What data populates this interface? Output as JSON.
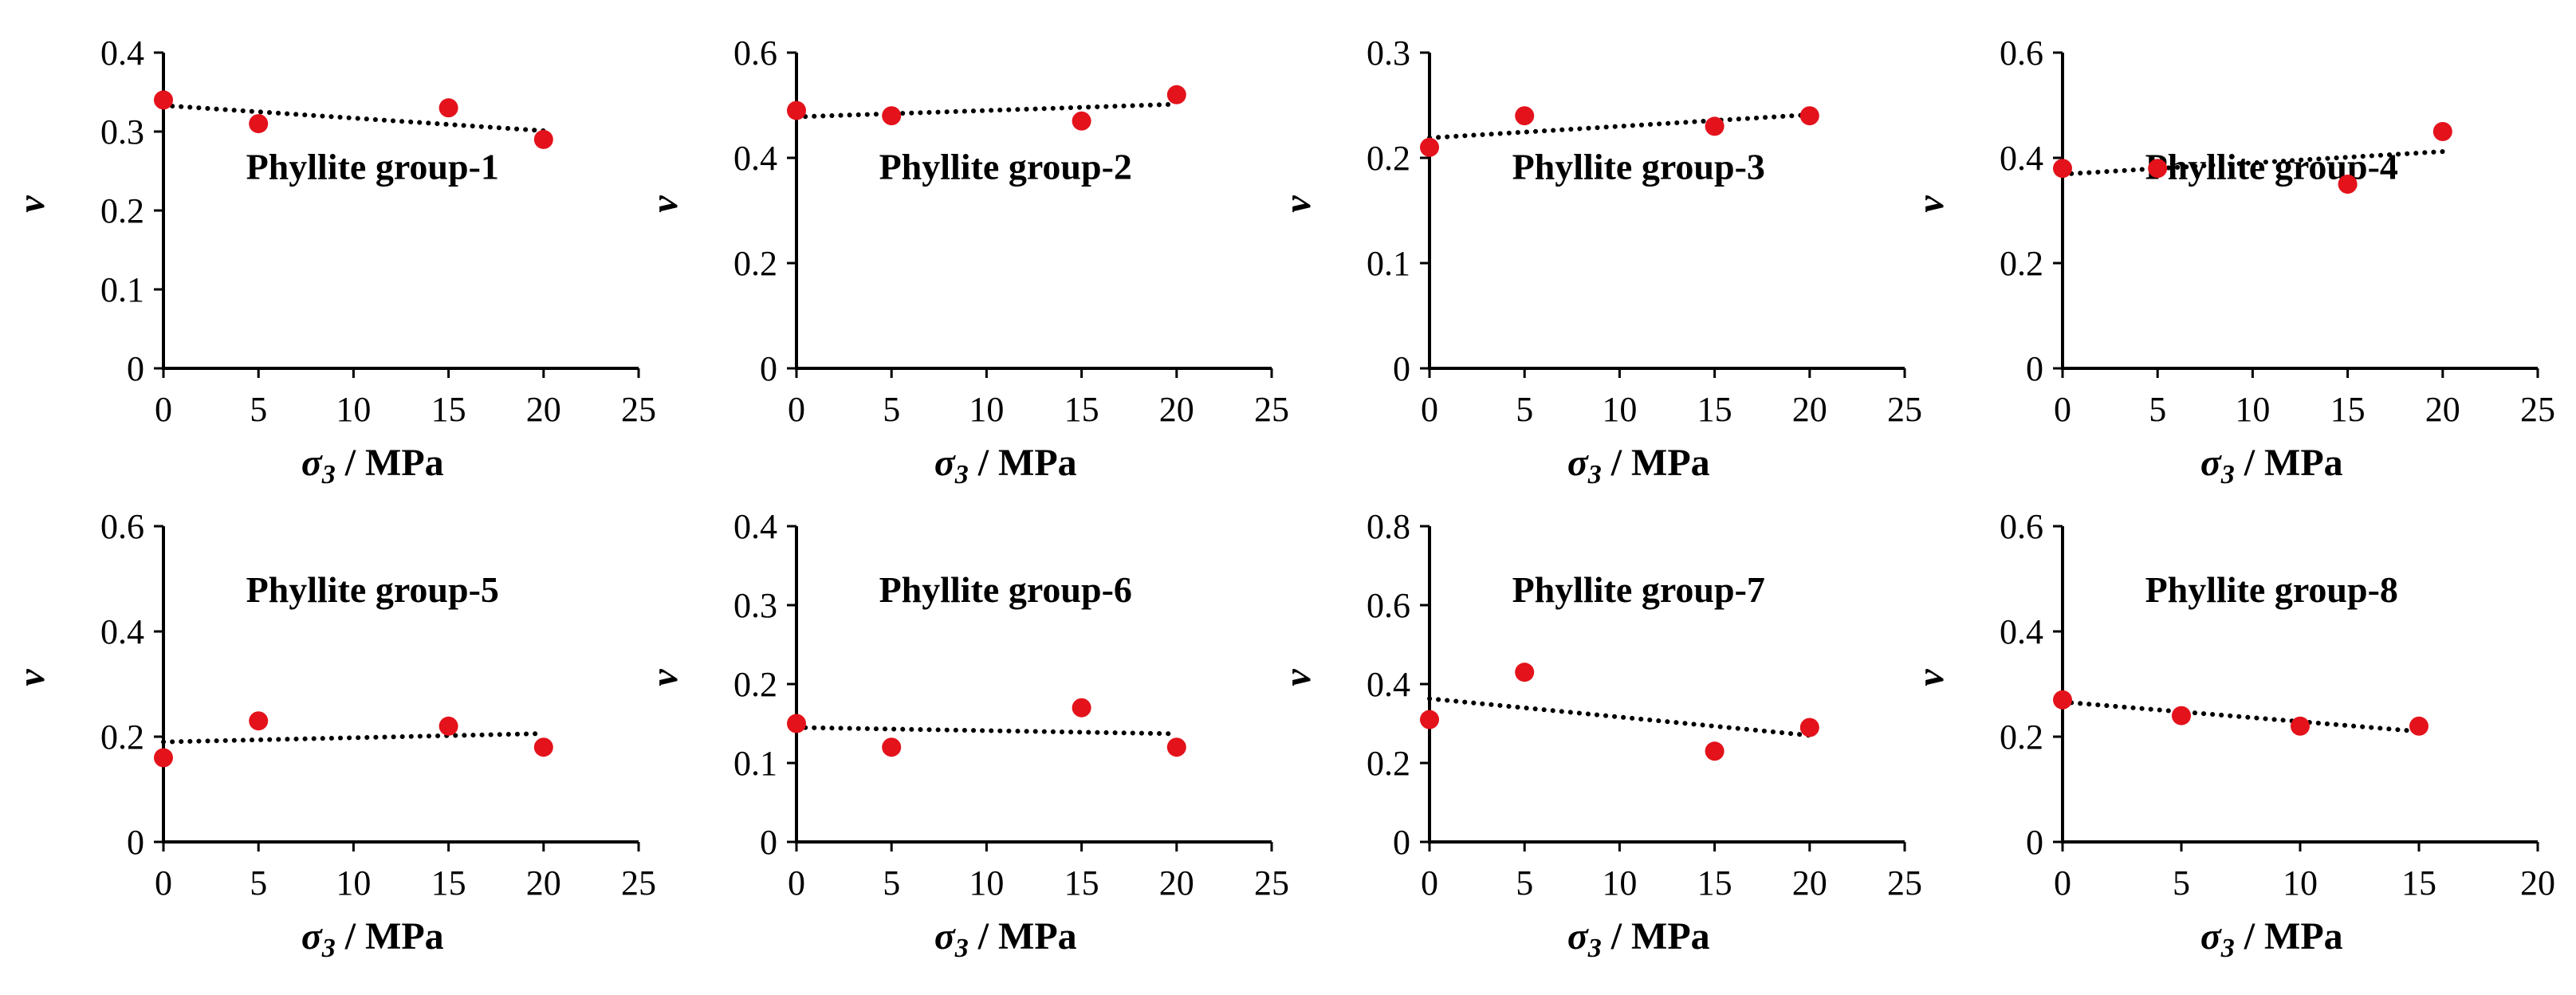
{
  "colors": {
    "point": "#e3121b",
    "axis": "#000000",
    "trend": "#000000"
  },
  "chart_data": [
    {
      "type": "scatter",
      "title": "Phyllite group-1",
      "xlabel": "σ3 / MPa",
      "ylabel": "ν",
      "xlim": [
        0,
        25
      ],
      "ylim": [
        0,
        0.4
      ],
      "xticks": [
        "0",
        "5",
        "10",
        "15",
        "20",
        "25"
      ],
      "yticks": [
        "0",
        "0.1",
        "0.2",
        "0.3",
        "0.4"
      ],
      "x": [
        0,
        5,
        15,
        20
      ],
      "y": [
        0.34,
        0.31,
        0.33,
        0.29
      ],
      "trendline": {
        "style": "dotted",
        "x": [
          0,
          20
        ],
        "y": [
          0.333,
          0.301
        ]
      }
    },
    {
      "type": "scatter",
      "title": "Phyllite group-2",
      "xlabel": "σ3 / MPa",
      "ylabel": "ν",
      "xlim": [
        0,
        25
      ],
      "ylim": [
        0,
        0.6
      ],
      "xticks": [
        "0",
        "5",
        "10",
        "15",
        "20",
        "25"
      ],
      "yticks": [
        "0",
        "0.2",
        "0.4",
        "0.6"
      ],
      "x": [
        0,
        5,
        15,
        20
      ],
      "y": [
        0.49,
        0.48,
        0.47,
        0.52
      ],
      "trendline": {
        "style": "dotted",
        "x": [
          0,
          20
        ],
        "y": [
          0.478,
          0.502
        ]
      }
    },
    {
      "type": "scatter",
      "title": "Phyllite group-3",
      "xlabel": "σ3 / MPa",
      "ylabel": "ν",
      "xlim": [
        0,
        25
      ],
      "ylim": [
        0,
        0.3
      ],
      "xticks": [
        "0",
        "5",
        "10",
        "15",
        "20",
        "25"
      ],
      "yticks": [
        "0",
        "0.1",
        "0.2",
        "0.3"
      ],
      "x": [
        0,
        5,
        15,
        20
      ],
      "y": [
        0.21,
        0.24,
        0.23,
        0.24
      ],
      "trendline": {
        "style": "dotted",
        "x": [
          0,
          20
        ],
        "y": [
          0.219,
          0.241
        ]
      }
    },
    {
      "type": "scatter",
      "title": "Phyllite group-4",
      "xlabel": "σ3 / MPa",
      "ylabel": "ν",
      "xlim": [
        0,
        25
      ],
      "ylim": [
        0,
        0.6
      ],
      "xticks": [
        "0",
        "5",
        "10",
        "15",
        "20",
        "25"
      ],
      "yticks": [
        "0",
        "0.2",
        "0.4",
        "0.6"
      ],
      "x": [
        0,
        5,
        15,
        20
      ],
      "y": [
        0.38,
        0.38,
        0.35,
        0.45
      ],
      "trendline": {
        "style": "dotted",
        "x": [
          0,
          20
        ],
        "y": [
          0.369,
          0.412
        ]
      }
    },
    {
      "type": "scatter",
      "title": "Phyllite group-5",
      "xlabel": "σ3 / MPa",
      "ylabel": "ν",
      "xlim": [
        0,
        25
      ],
      "ylim": [
        0,
        0.6
      ],
      "xticks": [
        "0",
        "5",
        "10",
        "15",
        "20",
        "25"
      ],
      "yticks": [
        "0",
        "0.2",
        "0.4",
        "0.6"
      ],
      "x": [
        0,
        5,
        15,
        20
      ],
      "y": [
        0.16,
        0.23,
        0.22,
        0.18
      ],
      "trendline": {
        "style": "dotted",
        "x": [
          0,
          20
        ],
        "y": [
          0.19,
          0.206
        ]
      }
    },
    {
      "type": "scatter",
      "title": "Phyllite group-6",
      "xlabel": "σ3 / MPa",
      "ylabel": "ν",
      "xlim": [
        0,
        25
      ],
      "ylim": [
        0,
        0.4
      ],
      "xticks": [
        "0",
        "5",
        "10",
        "15",
        "20",
        "25"
      ],
      "yticks": [
        "0",
        "0.1",
        "0.2",
        "0.3",
        "0.4"
      ],
      "x": [
        0,
        5,
        15,
        20
      ],
      "y": [
        0.15,
        0.12,
        0.17,
        0.12
      ],
      "trendline": {
        "style": "dotted",
        "x": [
          0,
          20
        ],
        "y": [
          0.145,
          0.137
        ]
      }
    },
    {
      "type": "scatter",
      "title": "Phyllite group-7",
      "xlabel": "σ3 / MPa",
      "ylabel": "ν",
      "xlim": [
        0,
        25
      ],
      "ylim": [
        0,
        0.8
      ],
      "xticks": [
        "0",
        "5",
        "10",
        "15",
        "20",
        "25"
      ],
      "yticks": [
        "0",
        "0.2",
        "0.4",
        "0.6",
        "0.8"
      ],
      "x": [
        0,
        5,
        15,
        20
      ],
      "y": [
        0.31,
        0.43,
        0.23,
        0.29
      ],
      "trendline": {
        "style": "dotted",
        "x": [
          0,
          20
        ],
        "y": [
          0.363,
          0.27
        ]
      }
    },
    {
      "type": "scatter",
      "title": "Phyllite group-8",
      "xlabel": "σ3 / MPa",
      "ylabel": "ν",
      "xlim": [
        0,
        20
      ],
      "ylim": [
        0,
        0.6
      ],
      "xticks": [
        "0",
        "5",
        "10",
        "15",
        "20"
      ],
      "yticks": [
        "0",
        "0.2",
        "0.4",
        "0.6"
      ],
      "x": [
        0,
        5,
        10,
        15
      ],
      "y": [
        0.27,
        0.24,
        0.22,
        0.22
      ],
      "trendline": {
        "style": "dotted",
        "x": [
          0,
          15
        ],
        "y": [
          0.266,
          0.21
        ]
      }
    }
  ]
}
